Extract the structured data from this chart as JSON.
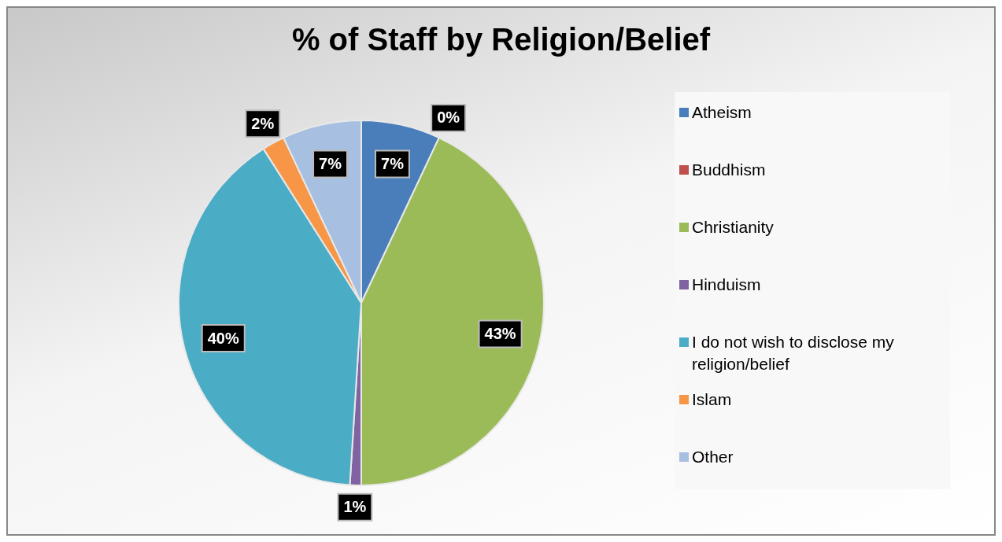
{
  "chart_data": {
    "type": "pie",
    "title": "% of Staff by Religion/Belief",
    "categories": [
      "Atheism",
      "Buddhism",
      "Christianity",
      "Hinduism",
      "I do not wish to disclose my religion/belief",
      "Islam",
      "Other"
    ],
    "values": [
      7,
      0,
      43,
      1,
      40,
      2,
      7
    ],
    "colors": [
      "#4a7ebb",
      "#c0504d",
      "#9bbb59",
      "#8064a2",
      "#4bacc6",
      "#f79646",
      "#a7bfe0"
    ],
    "value_labels": [
      "7%",
      "0%",
      "43%",
      "1%",
      "40%",
      "2%",
      "7%"
    ],
    "legend": "right"
  }
}
